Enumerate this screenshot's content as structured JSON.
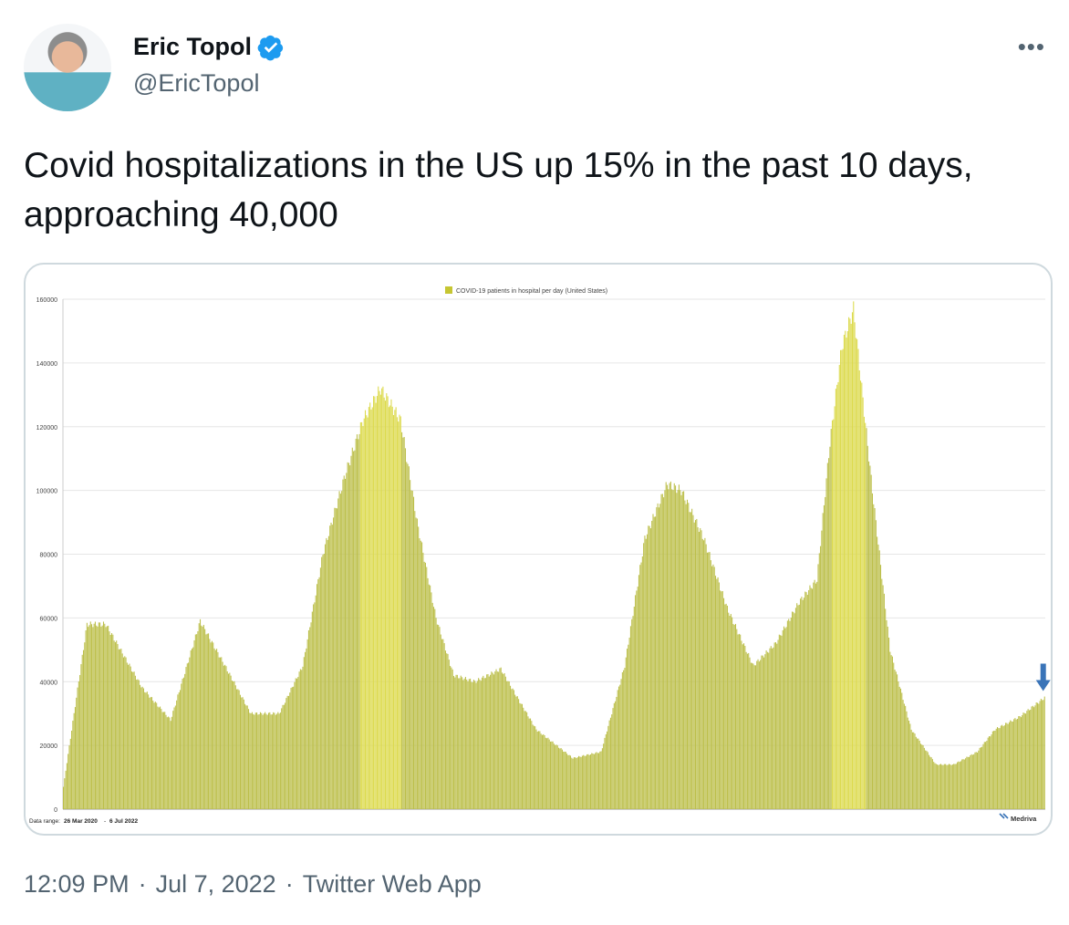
{
  "tweet": {
    "author_name": "Eric Topol",
    "author_handle": "@EricTopol",
    "text": "Covid hospitalizations in the US up 15% in the past 10 days, approaching 40,000",
    "time": "12:09 PM",
    "date": "Jul 7, 2022",
    "source": "Twitter Web App",
    "separator": "·",
    "more_icon": "more-horizontal-icon",
    "verified_icon": "verified-badge-icon",
    "colors": {
      "verified": "#1d9bf0",
      "secondary_text": "#536471",
      "border": "#cfd9de"
    }
  },
  "chart_data": {
    "type": "bar",
    "title": "",
    "legend": [
      {
        "label": "COVID-19 patients in hospital per day (United States)",
        "color": "#c6c632"
      }
    ],
    "legend_position": "top",
    "y_ticks": [
      0,
      20000,
      40000,
      60000,
      80000,
      100000,
      120000,
      140000,
      160000
    ],
    "ylim": [
      0,
      160000
    ],
    "grid": true,
    "data_range_label": "Data range:",
    "data_range_start": "26 Mar 2020",
    "data_range_sep": "-",
    "data_range_end": "6 Jul 2022",
    "brand": "Medriva",
    "bar_color": "#bcbf4a",
    "peak_color": "#dcda4c",
    "annotation": {
      "type": "arrow",
      "color": "#3a74b8",
      "target": "last-value"
    },
    "series": [
      {
        "name": "COVID-19 patients in hospital per day (United States)",
        "x": [
          "2020-03-26",
          "2020-04-15",
          "2020-05-01",
          "2020-06-01",
          "2020-06-25",
          "2020-07-20",
          "2020-08-10",
          "2020-09-01",
          "2020-09-25",
          "2020-10-15",
          "2020-11-01",
          "2020-11-20",
          "2020-12-05",
          "2020-12-20",
          "2021-01-06",
          "2021-01-20",
          "2021-02-05",
          "2021-02-20",
          "2021-03-10",
          "2021-04-01",
          "2021-04-15",
          "2021-05-01",
          "2021-06-01",
          "2021-06-25",
          "2021-07-15",
          "2021-08-01",
          "2021-08-20",
          "2021-09-01",
          "2021-09-20",
          "2021-10-10",
          "2021-11-01",
          "2021-11-20",
          "2021-12-10",
          "2021-12-25",
          "2022-01-05",
          "2022-01-15",
          "2022-01-25",
          "2022-02-10",
          "2022-02-25",
          "2022-03-15",
          "2022-04-05",
          "2022-04-20",
          "2022-05-10",
          "2022-05-25",
          "2022-06-15",
          "2022-07-06"
        ],
        "values": [
          7000,
          58000,
          58000,
          38000,
          28000,
          59000,
          45000,
          30000,
          30000,
          45000,
          80000,
          105000,
          122000,
          132000,
          122000,
          90000,
          60000,
          42000,
          40000,
          44000,
          35000,
          25000,
          16000,
          18000,
          45000,
          85000,
          102000,
          100000,
          85000,
          63000,
          45000,
          52000,
          65000,
          72000,
          115000,
          145000,
          157000,
          100000,
          50000,
          25000,
          14000,
          14000,
          18000,
          25000,
          29000,
          35000
        ]
      }
    ]
  }
}
